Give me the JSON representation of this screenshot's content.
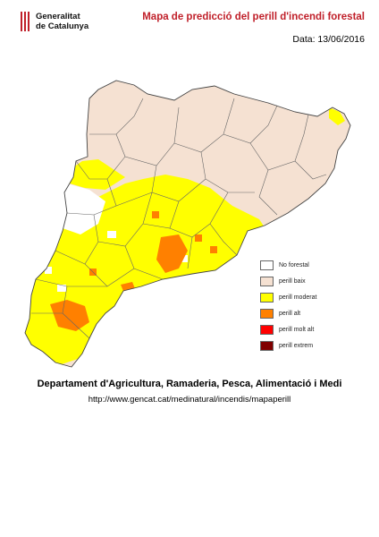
{
  "header": {
    "logo_line1": "Generalitat",
    "logo_line2": "de Catalunya",
    "title": "Mapa de predicció del perill d'incendi forestal",
    "date": "Data: 13/06/2016"
  },
  "legend": [
    {
      "label": "No forestal",
      "color": "#ffffff"
    },
    {
      "label": "perill baix",
      "color": "#f5e1d2"
    },
    {
      "label": "perill moderat",
      "color": "#ffff00"
    },
    {
      "label": "perill alt",
      "color": "#ff8000"
    },
    {
      "label": "perill molt alt",
      "color": "#ff0000"
    },
    {
      "label": "perill extrem",
      "color": "#800000"
    }
  ],
  "footer": {
    "department": "Departament d'Agricultura, Ramaderia, Pesca, Alimentació i Medi",
    "url": "http://www.gencat.cat/medinatural/incendis/mapaperill"
  },
  "colors": {
    "title": "#c0202a",
    "baix": "#f5e1d2",
    "moderat": "#ffff00",
    "alt": "#ff8000",
    "no_forestal": "#ffffff",
    "border": "#555555"
  }
}
